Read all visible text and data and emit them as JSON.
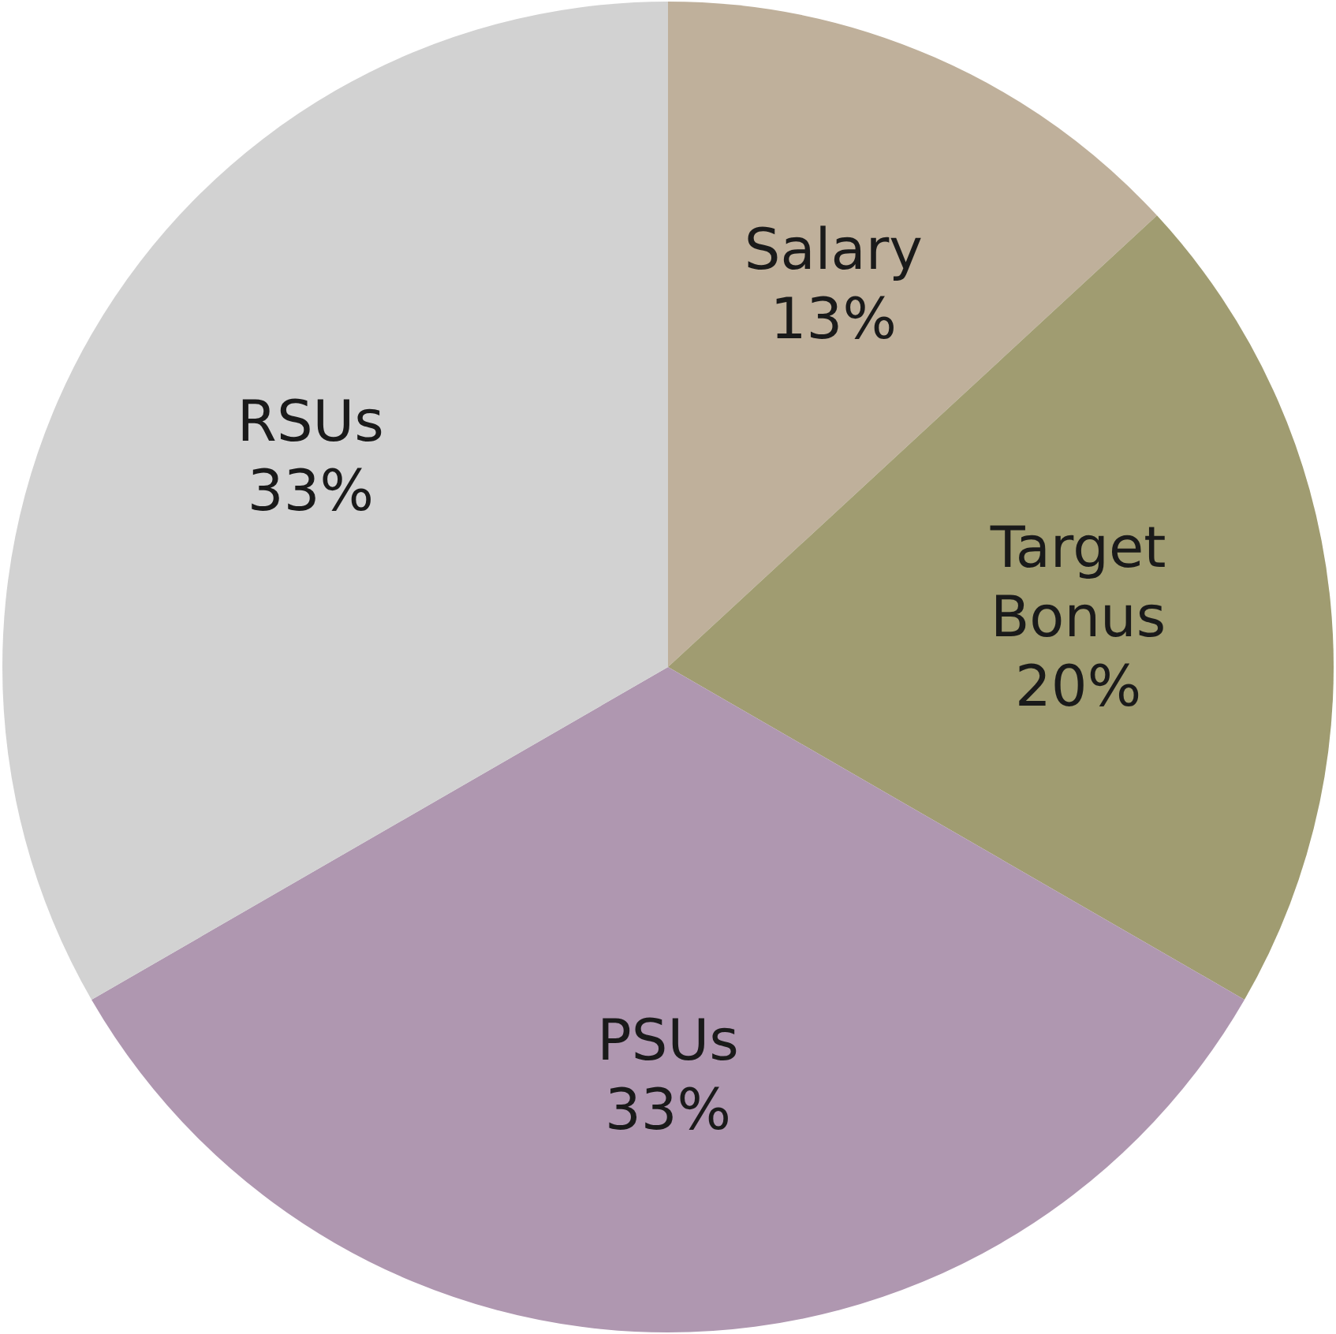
{
  "chart_data": {
    "type": "pie",
    "categories": [
      "Salary",
      "Target Bonus",
      "PSUs",
      "RSUs"
    ],
    "values": [
      13,
      20,
      33,
      33
    ],
    "colors": [
      "#bfb09b",
      "#a09c71",
      "#af97b0",
      "#d2d2d2"
    ],
    "value_labels": [
      "13%",
      "20%",
      "33%",
      "33%"
    ],
    "legend": false
  }
}
